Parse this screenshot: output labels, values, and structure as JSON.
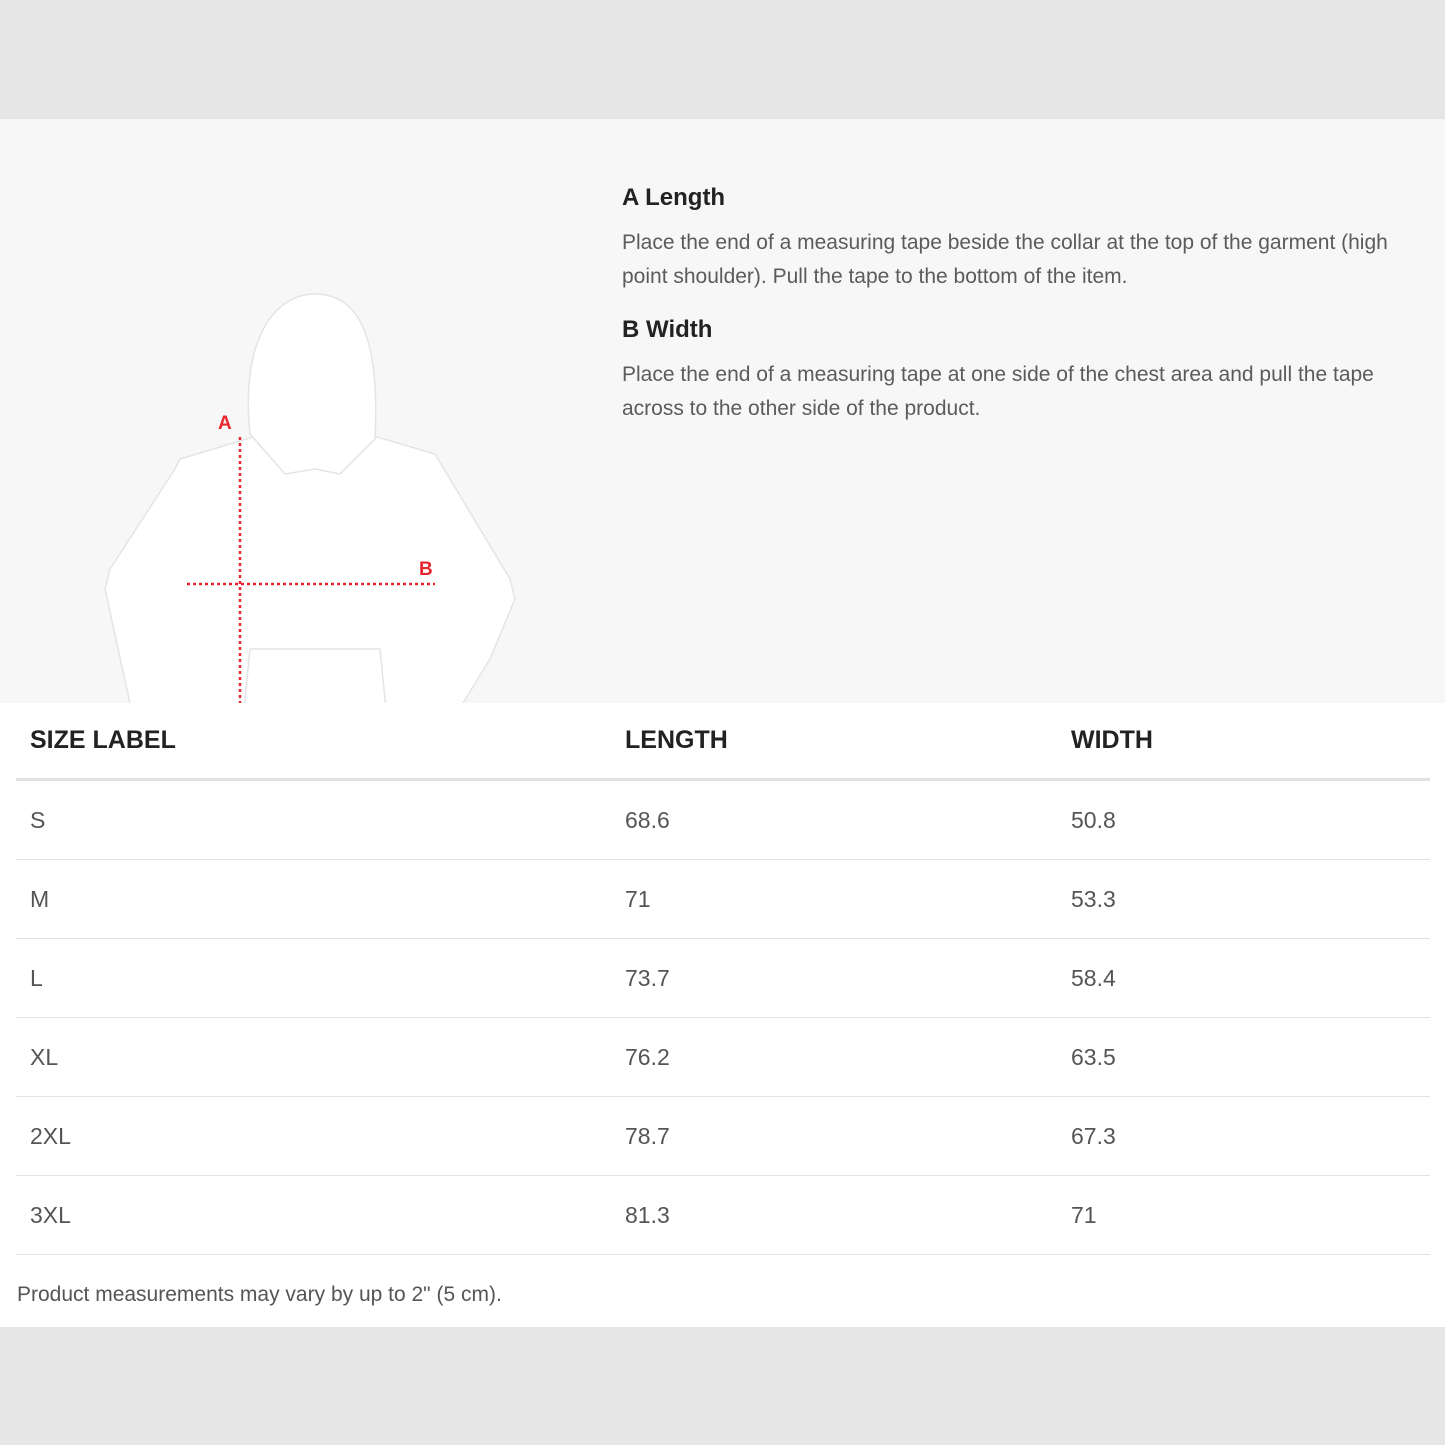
{
  "guide": {
    "items": [
      {
        "title": "A Length",
        "text": "Place the end of a measuring tape beside the collar at the top of the garment (high point shoulder). Pull the tape to the bottom of the item."
      },
      {
        "title": "B Width",
        "text": "Place the end of a measuring tape at one side of the chest area and pull the tape across to the other side of the product."
      }
    ],
    "diagram": {
      "label_a": "A",
      "label_b": "B",
      "marker_color": "#e8262d"
    }
  },
  "table": {
    "headers": [
      "SIZE LABEL",
      "LENGTH",
      "WIDTH"
    ],
    "rows": [
      [
        "S",
        "68.6",
        "50.8"
      ],
      [
        "M",
        "71",
        "53.3"
      ],
      [
        "L",
        "73.7",
        "58.4"
      ],
      [
        "XL",
        "76.2",
        "63.5"
      ],
      [
        "2XL",
        "78.7",
        "67.3"
      ],
      [
        "3XL",
        "81.3",
        "71"
      ]
    ]
  },
  "note": "Product measurements may vary by up to 2\" (5 cm)."
}
